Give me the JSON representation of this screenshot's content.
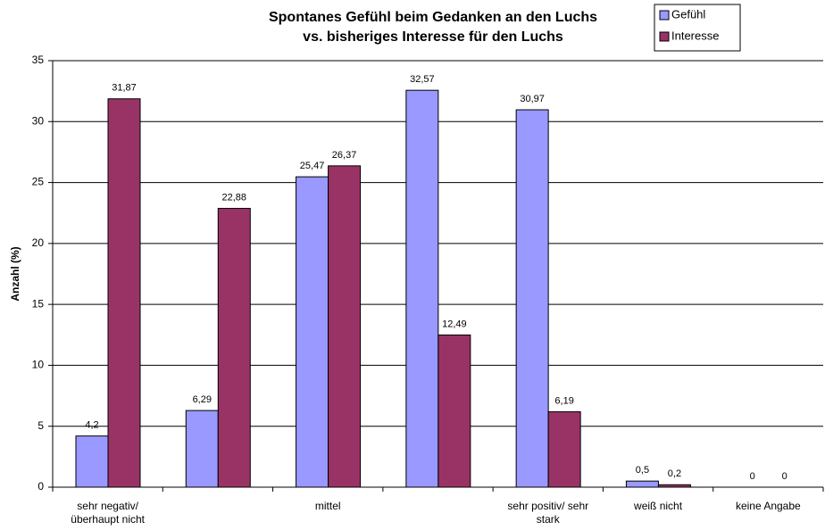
{
  "chart_data": {
    "type": "bar",
    "title": [
      "Spontanes Gefühl beim Gedanken an den Luchs",
      "vs. bisheriges Interesse für den Luchs"
    ],
    "y_label": "Anzahl (%)",
    "categories": [
      "sehr negativ/ überhaupt nicht",
      null,
      "mittel",
      null,
      "sehr positiv/ sehr stark",
      "weiß nicht",
      "keine Angabe"
    ],
    "series": [
      {
        "name": "Gefühl",
        "color": "#9999ff",
        "values": [
          4.2,
          6.29,
          25.47,
          32.57,
          30.97,
          0.5,
          0
        ],
        "value_labels": [
          "4,2",
          "6,29",
          "25,47",
          "32,57",
          "30,97",
          "0,5",
          "0"
        ]
      },
      {
        "name": "Interesse",
        "color": "#993366",
        "values": [
          31.87,
          22.88,
          26.37,
          12.49,
          6.19,
          0.2,
          0
        ],
        "value_labels": [
          "31,87",
          "22,88",
          "26,37",
          "12,49",
          "6,19",
          "0,2",
          "0"
        ]
      }
    ],
    "ylim": [
      0,
      35
    ],
    "yticks": [
      0,
      5,
      10,
      15,
      20,
      25,
      30,
      35
    ],
    "grid": true,
    "legend": "top-right"
  }
}
